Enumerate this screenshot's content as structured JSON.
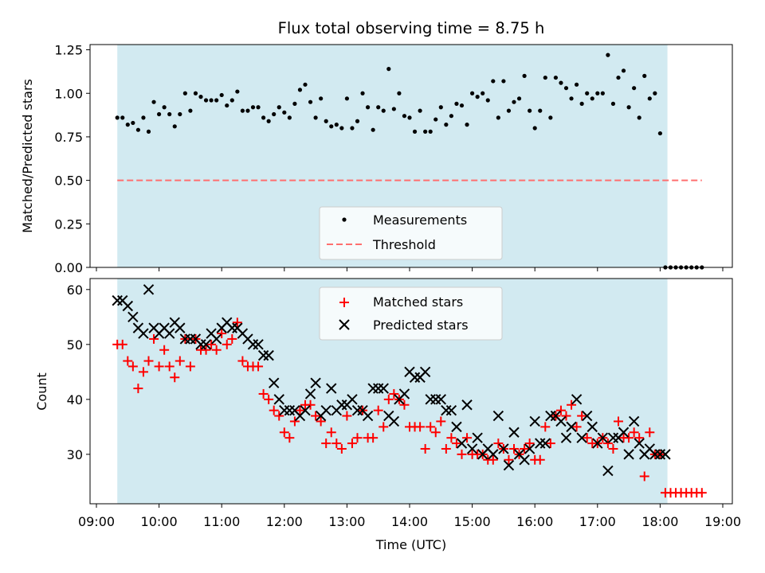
{
  "chart_data": [
    {
      "type": "scatter",
      "title": "Flux total observing time = 8.75 h",
      "xlabel": "",
      "ylabel": "Matched/Predicted stars",
      "xlim": [
        "09:00",
        "19:00"
      ],
      "ylim": [
        0,
        1.28
      ],
      "x_ticks": [
        "09:00",
        "10:00",
        "11:00",
        "12:00",
        "13:00",
        "14:00",
        "15:00",
        "16:00",
        "17:00",
        "18:00",
        "19:00"
      ],
      "y_ticks": [
        "0.00",
        "0.25",
        "0.50",
        "0.75",
        "1.00",
        "1.25"
      ],
      "shaded_interval": [
        "09:20",
        "18:07"
      ],
      "shade_color": "#add8e6",
      "legend_position": "lower center",
      "series": [
        {
          "name": "Measurements",
          "marker": "dot",
          "color": "#000000",
          "x": [
            "09:20",
            "09:25",
            "09:30",
            "09:35",
            "09:40",
            "09:45",
            "09:50",
            "09:55",
            "10:00",
            "10:05",
            "10:10",
            "10:15",
            "10:20",
            "10:25",
            "10:30",
            "10:35",
            "10:40",
            "10:45",
            "10:50",
            "10:55",
            "11:00",
            "11:05",
            "11:10",
            "11:15",
            "11:20",
            "11:25",
            "11:30",
            "11:35",
            "11:40",
            "11:45",
            "11:50",
            "11:55",
            "12:00",
            "12:05",
            "12:10",
            "12:15",
            "12:20",
            "12:25",
            "12:30",
            "12:35",
            "12:40",
            "12:45",
            "12:50",
            "12:55",
            "13:00",
            "13:05",
            "13:10",
            "13:15",
            "13:20",
            "13:25",
            "13:30",
            "13:35",
            "13:40",
            "13:45",
            "13:50",
            "13:55",
            "14:00",
            "14:05",
            "14:10",
            "14:15",
            "14:20",
            "14:25",
            "14:30",
            "14:35",
            "14:40",
            "14:45",
            "14:50",
            "14:55",
            "15:00",
            "15:05",
            "15:10",
            "15:15",
            "15:20",
            "15:25",
            "15:30",
            "15:35",
            "15:40",
            "15:45",
            "15:50",
            "15:55",
            "16:00",
            "16:05",
            "16:10",
            "16:15",
            "16:20",
            "16:25",
            "16:30",
            "16:35",
            "16:40",
            "16:45",
            "16:50",
            "16:55",
            "17:00",
            "17:05",
            "17:10",
            "17:15",
            "17:20",
            "17:25",
            "17:30",
            "17:35",
            "17:40",
            "17:45",
            "17:50",
            "17:55",
            "18:00",
            "18:05",
            "18:10",
            "18:15",
            "18:20",
            "18:25",
            "18:30",
            "18:35",
            "18:40"
          ],
          "y": [
            0.86,
            0.86,
            0.82,
            0.83,
            0.79,
            0.86,
            0.78,
            0.95,
            0.88,
            0.92,
            0.88,
            0.81,
            0.88,
            1.0,
            0.9,
            1.0,
            0.98,
            0.96,
            0.96,
            0.96,
            0.99,
            0.93,
            0.96,
            1.01,
            0.9,
            0.9,
            0.92,
            0.92,
            0.86,
            0.84,
            0.88,
            0.92,
            0.89,
            0.86,
            0.94,
            1.02,
            1.05,
            0.95,
            0.86,
            0.97,
            0.84,
            0.81,
            0.82,
            0.8,
            0.97,
            0.8,
            0.84,
            1.0,
            0.92,
            0.79,
            0.92,
            0.9,
            1.14,
            0.91,
            1.0,
            0.87,
            0.86,
            0.78,
            0.9,
            0.78,
            0.78,
            0.85,
            0.92,
            0.82,
            0.87,
            0.94,
            0.93,
            0.82,
            1.0,
            0.98,
            1.0,
            0.96,
            1.07,
            0.86,
            1.07,
            0.9,
            0.95,
            0.97,
            1.1,
            0.9,
            0.8,
            0.9,
            1.09,
            0.86,
            1.09,
            1.06,
            1.03,
            0.97,
            1.05,
            0.94,
            1.0,
            0.97,
            1.0,
            1.0,
            1.22,
            0.94,
            1.09,
            1.13,
            0.92,
            1.03,
            0.86,
            1.1,
            0.97,
            1.0,
            0.77,
            0.0,
            0.0,
            0.0,
            0.0,
            0.0,
            0.0,
            0.0,
            0.0
          ]
        },
        {
          "name": "Threshold",
          "style": "dashed-line",
          "color": "#ff6f6f",
          "x": [
            "09:20",
            "18:40"
          ],
          "y": [
            0.5,
            0.5
          ]
        }
      ]
    },
    {
      "type": "scatter",
      "title": "",
      "xlabel": "Time (UTC)",
      "ylabel": "Count",
      "xlim": [
        "09:00",
        "19:00"
      ],
      "ylim": [
        21,
        62
      ],
      "x_ticks": [
        "09:00",
        "10:00",
        "11:00",
        "12:00",
        "13:00",
        "14:00",
        "15:00",
        "16:00",
        "17:00",
        "18:00",
        "19:00"
      ],
      "y_ticks": [
        "30",
        "40",
        "50",
        "60"
      ],
      "shaded_interval": [
        "09:20",
        "18:07"
      ],
      "shade_color": "#add8e6",
      "legend_position": "upper center",
      "series": [
        {
          "name": "Matched stars",
          "marker": "plus",
          "color": "#ff0000",
          "x": [
            "09:20",
            "09:25",
            "09:30",
            "09:35",
            "09:40",
            "09:45",
            "09:50",
            "09:55",
            "10:00",
            "10:05",
            "10:10",
            "10:15",
            "10:20",
            "10:25",
            "10:30",
            "10:35",
            "10:40",
            "10:45",
            "10:50",
            "10:55",
            "11:00",
            "11:05",
            "11:10",
            "11:15",
            "11:20",
            "11:25",
            "11:30",
            "11:35",
            "11:40",
            "11:45",
            "11:50",
            "11:55",
            "12:00",
            "12:05",
            "12:10",
            "12:15",
            "12:20",
            "12:25",
            "12:30",
            "12:35",
            "12:40",
            "12:45",
            "12:50",
            "12:55",
            "13:00",
            "13:05",
            "13:10",
            "13:15",
            "13:20",
            "13:25",
            "13:30",
            "13:35",
            "13:40",
            "13:45",
            "13:50",
            "13:55",
            "14:00",
            "14:05",
            "14:10",
            "14:15",
            "14:20",
            "14:25",
            "14:30",
            "14:35",
            "14:40",
            "14:45",
            "14:50",
            "14:55",
            "15:00",
            "15:05",
            "15:10",
            "15:15",
            "15:20",
            "15:25",
            "15:30",
            "15:35",
            "15:40",
            "15:45",
            "15:50",
            "15:55",
            "16:00",
            "16:05",
            "16:10",
            "16:15",
            "16:20",
            "16:25",
            "16:30",
            "16:35",
            "16:40",
            "16:45",
            "16:50",
            "16:55",
            "17:00",
            "17:05",
            "17:10",
            "17:15",
            "17:20",
            "17:25",
            "17:30",
            "17:35",
            "17:40",
            "17:45",
            "17:50",
            "17:55",
            "18:00",
            "18:05",
            "18:10",
            "18:15",
            "18:20",
            "18:25",
            "18:30",
            "18:35",
            "18:40"
          ],
          "y": [
            50,
            50,
            47,
            46,
            42,
            45,
            47,
            51,
            46,
            49,
            46,
            44,
            47,
            51,
            46,
            51,
            49,
            49,
            50,
            49,
            52,
            50,
            51,
            54,
            47,
            46,
            46,
            46,
            41,
            40,
            38,
            37,
            34,
            33,
            36,
            38,
            39,
            39,
            37,
            36,
            32,
            34,
            32,
            31,
            37,
            32,
            33,
            38,
            33,
            33,
            38,
            35,
            40,
            41,
            40,
            39,
            35,
            35,
            35,
            31,
            35,
            34,
            36,
            31,
            33,
            32,
            30,
            33,
            30,
            30,
            30,
            29,
            29,
            32,
            31,
            29,
            31,
            30,
            31,
            32,
            29,
            29,
            35,
            32,
            37,
            38,
            37,
            39,
            35,
            37,
            33,
            32,
            32,
            33,
            32,
            31,
            36,
            33,
            33,
            34,
            33,
            26,
            34,
            30,
            30,
            23,
            23,
            23,
            23,
            23,
            23,
            23,
            23
          ]
        },
        {
          "name": "Predicted stars",
          "marker": "x",
          "color": "#000000",
          "x": [
            "09:20",
            "09:25",
            "09:30",
            "09:35",
            "09:40",
            "09:45",
            "09:50",
            "09:55",
            "10:00",
            "10:05",
            "10:10",
            "10:15",
            "10:20",
            "10:25",
            "10:30",
            "10:35",
            "10:40",
            "10:45",
            "10:50",
            "10:55",
            "11:00",
            "11:05",
            "11:10",
            "11:15",
            "11:20",
            "11:25",
            "11:30",
            "11:35",
            "11:40",
            "11:45",
            "11:50",
            "11:55",
            "12:00",
            "12:05",
            "12:10",
            "12:15",
            "12:20",
            "12:25",
            "12:30",
            "12:35",
            "12:40",
            "12:45",
            "12:50",
            "12:55",
            "13:00",
            "13:05",
            "13:10",
            "13:15",
            "13:20",
            "13:25",
            "13:30",
            "13:35",
            "13:40",
            "13:45",
            "13:50",
            "13:55",
            "14:00",
            "14:05",
            "14:10",
            "14:15",
            "14:20",
            "14:25",
            "14:30",
            "14:35",
            "14:40",
            "14:45",
            "14:50",
            "14:55",
            "15:00",
            "15:05",
            "15:10",
            "15:15",
            "15:20",
            "15:25",
            "15:30",
            "15:35",
            "15:40",
            "15:45",
            "15:50",
            "15:55",
            "16:00",
            "16:05",
            "16:10",
            "16:15",
            "16:20",
            "16:25",
            "16:30",
            "16:35",
            "16:40",
            "16:45",
            "16:50",
            "16:55",
            "17:00",
            "17:05",
            "17:10",
            "17:15",
            "17:20",
            "17:25",
            "17:30",
            "17:35",
            "17:40",
            "17:45",
            "17:50",
            "17:55",
            "18:00",
            "18:05"
          ],
          "y": [
            58,
            58,
            57,
            55,
            53,
            52,
            60,
            53,
            52,
            53,
            52,
            54,
            53,
            51,
            51,
            51,
            50,
            50,
            52,
            51,
            53,
            54,
            53,
            53,
            52,
            51,
            50,
            50,
            48,
            48,
            43,
            40,
            38,
            38,
            38,
            37,
            38,
            41,
            43,
            37,
            38,
            42,
            38,
            39,
            39,
            40,
            38,
            38,
            37,
            42,
            42,
            42,
            37,
            36,
            40,
            41,
            45,
            44,
            44,
            45,
            40,
            40,
            40,
            38,
            38,
            35,
            32,
            39,
            31,
            33,
            30,
            31,
            30,
            37,
            31,
            28,
            34,
            30,
            29,
            31,
            36,
            32,
            32,
            37,
            37,
            36,
            33,
            35,
            40,
            33,
            37,
            35,
            32,
            33,
            27,
            33,
            33,
            34,
            30,
            36,
            32,
            30,
            31,
            30,
            30,
            30
          ]
        }
      ]
    }
  ]
}
